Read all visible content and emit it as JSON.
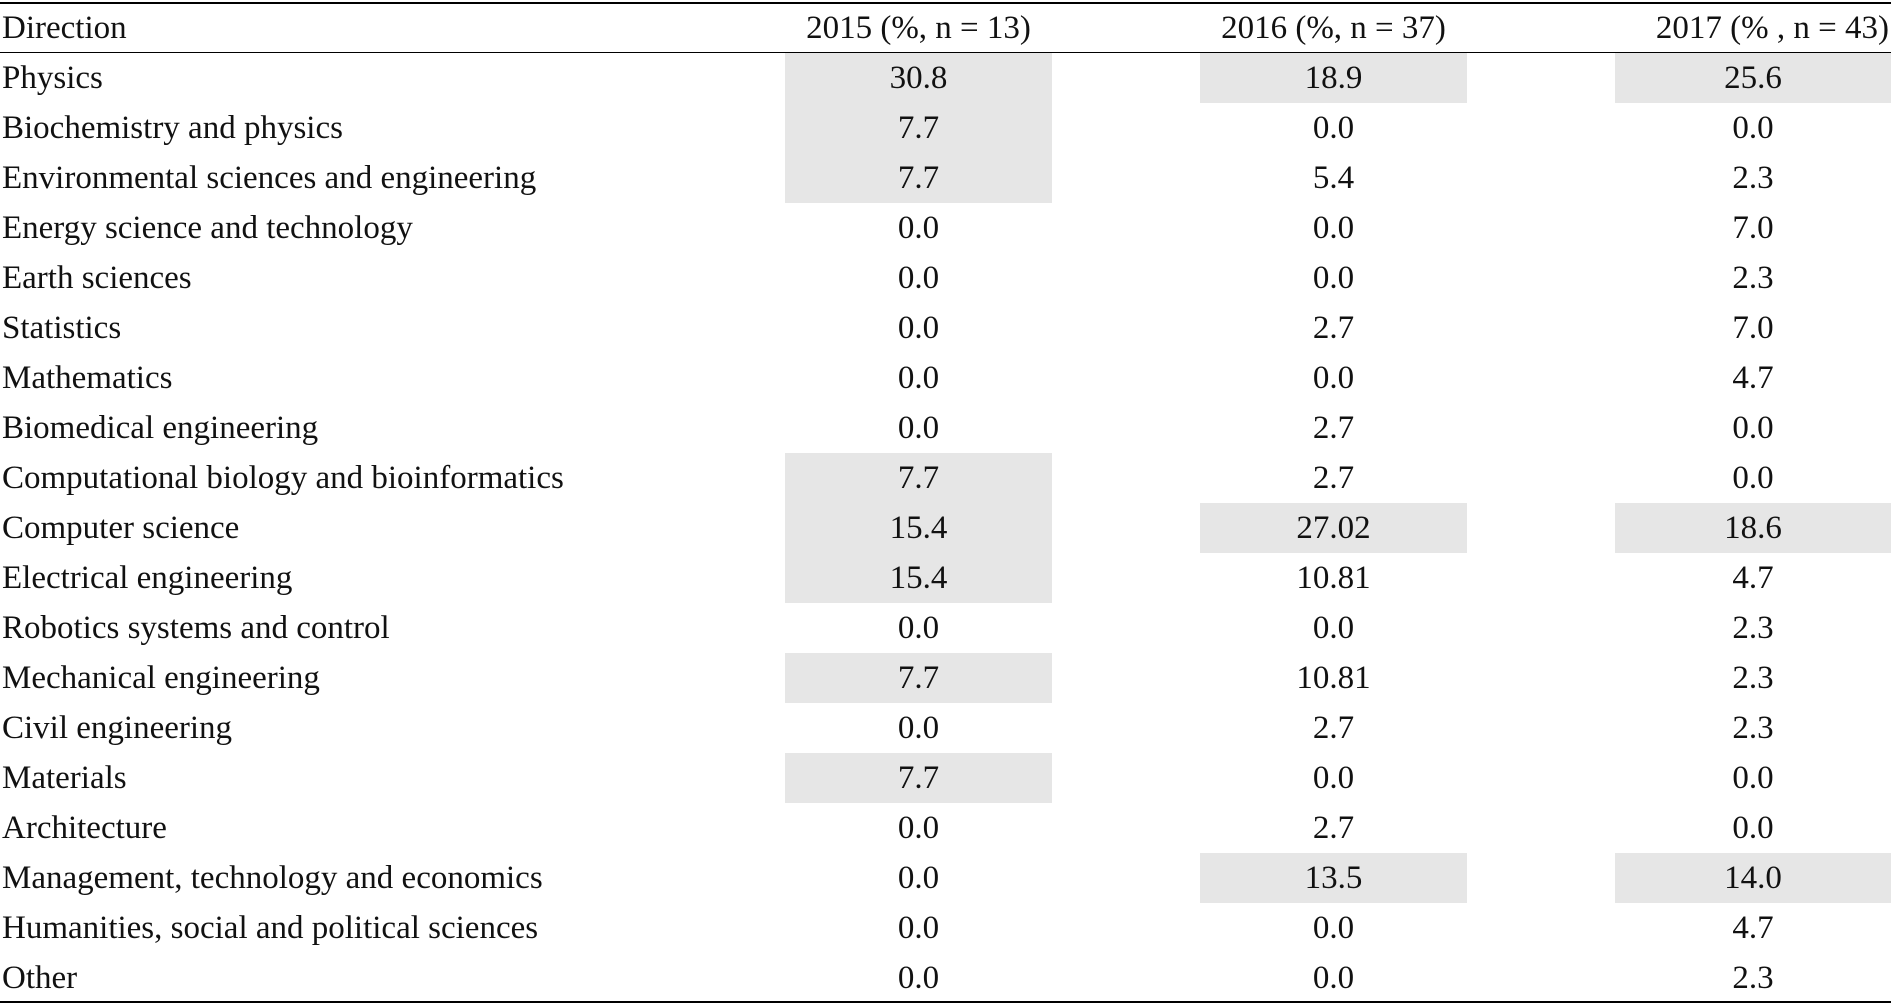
{
  "chart_data": {
    "type": "table",
    "columns": [
      "Direction",
      "2015 (%, n = 13)",
      "2016 (%, n = 37)",
      "2017 (% , n = 43)"
    ],
    "highlight_color": "#e6e6e6",
    "rows": [
      {
        "direction": "Physics",
        "values": [
          "30.8",
          "18.9",
          "25.6"
        ],
        "highlighted": [
          true,
          true,
          true
        ]
      },
      {
        "direction": "Biochemistry and physics",
        "values": [
          "7.7",
          "0.0",
          "0.0"
        ],
        "highlighted": [
          true,
          false,
          false
        ]
      },
      {
        "direction": "Environmental sciences and engineering",
        "values": [
          "7.7",
          "5.4",
          "2.3"
        ],
        "highlighted": [
          true,
          false,
          false
        ]
      },
      {
        "direction": "Energy science and technology",
        "values": [
          "0.0",
          "0.0",
          "7.0"
        ],
        "highlighted": [
          false,
          false,
          false
        ]
      },
      {
        "direction": "Earth sciences",
        "values": [
          "0.0",
          "0.0",
          "2.3"
        ],
        "highlighted": [
          false,
          false,
          false
        ]
      },
      {
        "direction": "Statistics",
        "values": [
          "0.0",
          "2.7",
          "7.0"
        ],
        "highlighted": [
          false,
          false,
          false
        ]
      },
      {
        "direction": "Mathematics",
        "values": [
          "0.0",
          "0.0",
          "4.7"
        ],
        "highlighted": [
          false,
          false,
          false
        ]
      },
      {
        "direction": "Biomedical engineering",
        "values": [
          "0.0",
          "2.7",
          "0.0"
        ],
        "highlighted": [
          false,
          false,
          false
        ]
      },
      {
        "direction": "Computational biology and bioinformatics",
        "values": [
          "7.7",
          "2.7",
          "0.0"
        ],
        "highlighted": [
          true,
          false,
          false
        ]
      },
      {
        "direction": "Computer science",
        "values": [
          "15.4",
          "27.02",
          "18.6"
        ],
        "highlighted": [
          true,
          true,
          true
        ]
      },
      {
        "direction": "Electrical engineering",
        "values": [
          "15.4",
          "10.81",
          "4.7"
        ],
        "highlighted": [
          true,
          false,
          false
        ]
      },
      {
        "direction": "Robotics systems and control",
        "values": [
          "0.0",
          "0.0",
          "2.3"
        ],
        "highlighted": [
          false,
          false,
          false
        ]
      },
      {
        "direction": "Mechanical engineering",
        "values": [
          "7.7",
          "10.81",
          "2.3"
        ],
        "highlighted": [
          true,
          false,
          false
        ]
      },
      {
        "direction": "Civil engineering",
        "values": [
          "0.0",
          "2.7",
          "2.3"
        ],
        "highlighted": [
          false,
          false,
          false
        ]
      },
      {
        "direction": "Materials",
        "values": [
          "7.7",
          "0.0",
          "0.0"
        ],
        "highlighted": [
          true,
          false,
          false
        ]
      },
      {
        "direction": "Architecture",
        "values": [
          "0.0",
          "2.7",
          "0.0"
        ],
        "highlighted": [
          false,
          false,
          false
        ]
      },
      {
        "direction": "Management, technology and economics",
        "values": [
          "0.0",
          "13.5",
          "14.0"
        ],
        "highlighted": [
          false,
          true,
          true
        ]
      },
      {
        "direction": "Humanities, social and political sciences",
        "values": [
          "0.0",
          "0.0",
          "4.7"
        ],
        "highlighted": [
          false,
          false,
          false
        ]
      },
      {
        "direction": "Other",
        "values": [
          "0.0",
          "0.0",
          "2.3"
        ],
        "highlighted": [
          false,
          false,
          false
        ]
      }
    ]
  }
}
